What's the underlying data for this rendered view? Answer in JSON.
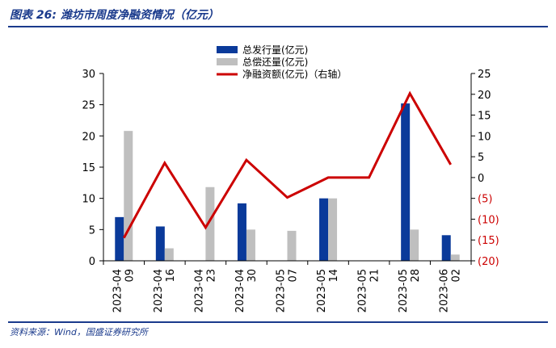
{
  "header": {
    "title": "图表 26:  潍坊市周度净融资情况（亿元）"
  },
  "footer": {
    "source": "资料来源：Wind，国盛证券研究所"
  },
  "colors": {
    "issuance": "#0a3a9a",
    "repayment": "#bfbfbf",
    "net": "#cc0000",
    "axis": "#000000",
    "right_tick": "#cc0000"
  },
  "chart_data": {
    "type": "bar",
    "categories": [
      "2023-04-09",
      "2023-04-16",
      "2023-04-23",
      "2023-04-30",
      "2023-05-07",
      "2023-05-14",
      "2023-05-21",
      "2023-05-28",
      "2023-06-02"
    ],
    "category_lines": [
      [
        "2023-04",
        "09"
      ],
      [
        "2023-04",
        "16"
      ],
      [
        "2023-04",
        "23"
      ],
      [
        "2023-04",
        "30"
      ],
      [
        "2023-05",
        "07"
      ],
      [
        "2023-05",
        "14"
      ],
      [
        "2023-05",
        "21"
      ],
      [
        "2023-05",
        "28"
      ],
      [
        "2023-06",
        "02"
      ]
    ],
    "series": [
      {
        "name": "总发行量(亿元)",
        "type": "bar",
        "axis": "left",
        "values": [
          7.0,
          5.5,
          0,
          9.2,
          0,
          10.0,
          0,
          25.2,
          4.1
        ]
      },
      {
        "name": "总偿还量(亿元)",
        "type": "bar",
        "axis": "left",
        "values": [
          20.8,
          2.0,
          11.8,
          5.0,
          4.8,
          10.0,
          0,
          5.0,
          1.0
        ]
      },
      {
        "name": "净融资额(亿元)（右轴）",
        "type": "line",
        "axis": "right",
        "values": [
          -14.5,
          3.5,
          -12.0,
          4.2,
          -4.8,
          0,
          0,
          20.2,
          3.1
        ]
      }
    ],
    "y_left": {
      "lim": [
        0,
        30
      ],
      "ticks": [
        "0",
        "5",
        "10",
        "15",
        "20",
        "25",
        "30"
      ]
    },
    "y_right": {
      "lim": [
        -20,
        25
      ],
      "ticks": [
        "(20)",
        "(15)",
        "(10)",
        "(5)",
        "0",
        "5",
        "10",
        "15",
        "20",
        "25"
      ]
    },
    "legend_position": "top-center",
    "grid": false
  }
}
